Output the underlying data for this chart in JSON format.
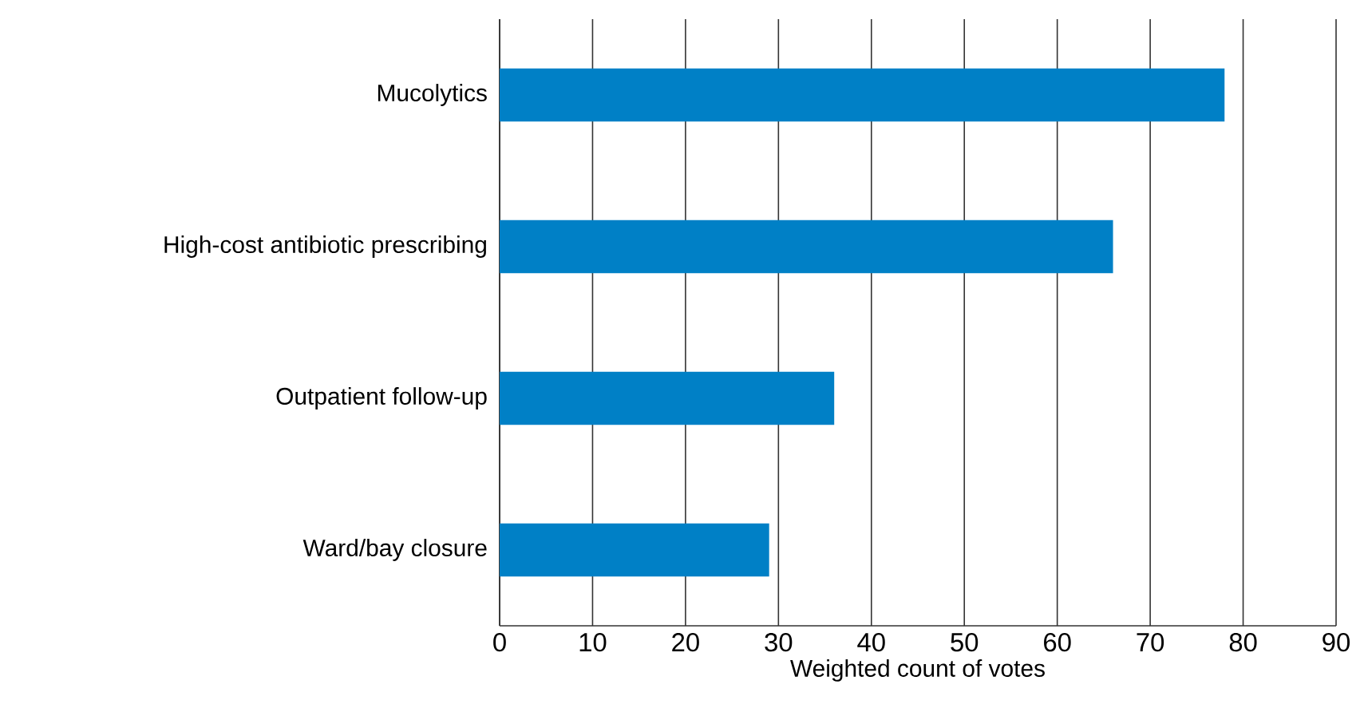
{
  "chart_data": {
    "type": "bar",
    "orientation": "horizontal",
    "xlabel": "Weighted count of votes",
    "categories": [
      "Mucolytics",
      "High-cost antibiotic prescribing",
      "Outpatient follow-up",
      "Ward/bay closure"
    ],
    "values": [
      78,
      66,
      36,
      29
    ],
    "color": "#0080c6",
    "xlim": [
      0,
      90
    ],
    "xticks": [
      0,
      10,
      20,
      30,
      40,
      50,
      60,
      70,
      80,
      90
    ],
    "grid": "x"
  }
}
